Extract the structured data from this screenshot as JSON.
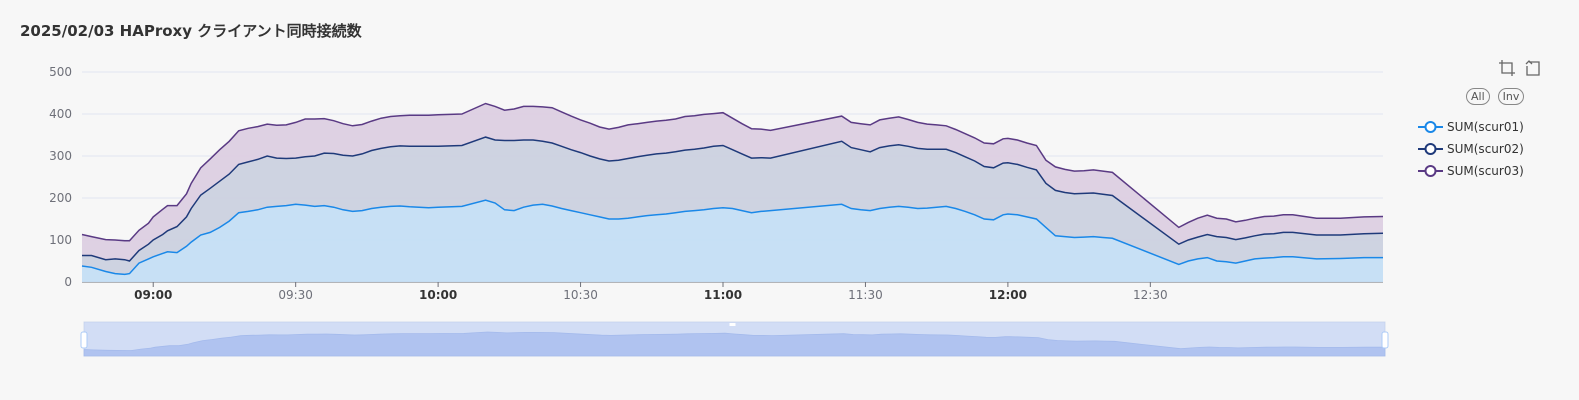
{
  "title": "2025/02/03 HAProxy クライアント同時接続数",
  "toolbox": {
    "zoom_icon": "data-zoom-icon",
    "restore_icon": "zoom-restore-icon"
  },
  "legend_buttons": {
    "all": "All",
    "inverse": "Inv"
  },
  "chart_data": {
    "type": "area",
    "stacked": true,
    "ylim": [
      0,
      500
    ],
    "y_ticks": [
      "0",
      "100",
      "200",
      "300",
      "400",
      "500"
    ],
    "x_range": [
      "08:45",
      "13:19"
    ],
    "x_ticks": [
      {
        "label": "09:00",
        "time": "09:00",
        "bold": true
      },
      {
        "label": "09:30",
        "time": "09:30",
        "bold": false
      },
      {
        "label": "10:00",
        "time": "10:00",
        "bold": true
      },
      {
        "label": "10:30",
        "time": "10:30",
        "bold": false
      },
      {
        "label": "11:00",
        "time": "11:00",
        "bold": true
      },
      {
        "label": "11:30",
        "time": "11:30",
        "bold": false
      },
      {
        "label": "12:00",
        "time": "12:00",
        "bold": true
      },
      {
        "label": "12:30",
        "time": "12:30",
        "bold": false
      }
    ],
    "grid": true,
    "legend_position": "right",
    "x": [
      "08:45",
      "08:47",
      "08:50",
      "08:52",
      "08:54",
      "08:55",
      "08:57",
      "08:59",
      "09:00",
      "09:02",
      "09:03",
      "09:05",
      "09:07",
      "09:08",
      "09:10",
      "09:12",
      "09:14",
      "09:16",
      "09:18",
      "09:20",
      "09:22",
      "09:24",
      "09:26",
      "09:28",
      "09:30",
      "09:32",
      "09:34",
      "09:36",
      "09:38",
      "09:40",
      "09:42",
      "09:44",
      "09:46",
      "09:48",
      "09:50",
      "09:52",
      "09:54",
      "09:56",
      "09:58",
      "10:00",
      "10:05",
      "10:10",
      "10:12",
      "10:14",
      "10:16",
      "10:18",
      "10:20",
      "10:22",
      "10:24",
      "10:26",
      "10:28",
      "10:30",
      "10:32",
      "10:34",
      "10:36",
      "10:38",
      "10:40",
      "10:42",
      "10:44",
      "10:46",
      "10:48",
      "10:50",
      "10:52",
      "10:54",
      "10:56",
      "10:58",
      "11:00",
      "11:02",
      "11:04",
      "11:06",
      "11:08",
      "11:10",
      "11:25",
      "11:27",
      "11:29",
      "11:31",
      "11:33",
      "11:35",
      "11:37",
      "11:39",
      "11:41",
      "11:43",
      "11:45",
      "11:47",
      "11:49",
      "11:51",
      "11:53",
      "11:55",
      "11:57",
      "11:59",
      "12:00",
      "12:02",
      "12:04",
      "12:06",
      "12:08",
      "12:10",
      "12:12",
      "12:14",
      "12:16",
      "12:18",
      "12:20",
      "12:22",
      "12:36",
      "12:38",
      "12:40",
      "12:42",
      "12:44",
      "12:46",
      "12:48",
      "12:50",
      "12:52",
      "12:54",
      "12:56",
      "12:58",
      "13:00",
      "13:05",
      "13:10",
      "13:15",
      "13:19"
    ],
    "series": [
      {
        "name": "SUM(scur01)",
        "color": "#1a88e8",
        "fill": "#c4def4",
        "values": [
          38,
          35,
          25,
          20,
          18,
          20,
          45,
          55,
          60,
          68,
          72,
          70,
          85,
          95,
          112,
          118,
          130,
          145,
          165,
          168,
          172,
          178,
          180,
          182,
          185,
          183,
          180,
          182,
          178,
          172,
          168,
          170,
          175,
          178,
          180,
          181,
          179,
          178,
          177,
          178,
          180,
          195,
          188,
          172,
          170,
          178,
          183,
          185,
          181,
          175,
          170,
          165,
          160,
          155,
          150,
          150,
          152,
          155,
          158,
          160,
          162,
          165,
          168,
          170,
          172,
          175,
          177,
          175,
          170,
          165,
          168,
          170,
          185,
          175,
          172,
          170,
          175,
          178,
          180,
          178,
          175,
          176,
          178,
          180,
          175,
          168,
          160,
          150,
          148,
          160,
          162,
          160,
          155,
          150,
          130,
          110,
          108,
          106,
          107,
          108,
          106,
          104,
          42,
          50,
          55,
          58,
          50,
          48,
          45,
          50,
          55,
          57,
          58,
          60,
          60,
          55,
          56,
          58,
          58
        ]
      },
      {
        "name": "SUM(scur02)",
        "color": "#1f3a7a",
        "fill": "#cbd1df",
        "values": [
          25,
          28,
          28,
          35,
          35,
          30,
          30,
          35,
          40,
          45,
          50,
          62,
          70,
          80,
          95,
          105,
          110,
          112,
          115,
          118,
          120,
          122,
          115,
          112,
          110,
          115,
          120,
          125,
          128,
          130,
          132,
          135,
          138,
          140,
          142,
          143,
          144,
          145,
          146,
          145,
          145,
          150,
          150,
          165,
          167,
          160,
          155,
          150,
          150,
          148,
          145,
          143,
          140,
          138,
          138,
          140,
          142,
          143,
          144,
          145,
          145,
          145,
          146,
          146,
          147,
          148,
          148,
          140,
          135,
          130,
          128,
          125,
          150,
          145,
          143,
          140,
          145,
          146,
          147,
          145,
          143,
          140,
          138,
          136,
          133,
          130,
          128,
          125,
          124,
          123,
          122,
          120,
          118,
          117,
          105,
          108,
          105,
          104,
          104,
          104,
          103,
          102,
          48,
          50,
          52,
          55,
          58,
          58,
          56,
          55,
          55,
          57,
          57,
          58,
          58,
          57,
          56,
          57,
          58
        ]
      },
      {
        "name": "SUM(scur03)",
        "color": "#5a3a84",
        "fill": "#dccfe2",
        "values": [
          50,
          45,
          48,
          45,
          45,
          48,
          48,
          50,
          55,
          60,
          60,
          50,
          55,
          60,
          65,
          70,
          75,
          78,
          80,
          80,
          78,
          76,
          78,
          80,
          85,
          90,
          88,
          82,
          78,
          75,
          72,
          70,
          70,
          72,
          72,
          72,
          74,
          74,
          74,
          75,
          75,
          80,
          80,
          72,
          75,
          80,
          80,
          82,
          84,
          82,
          80,
          78,
          78,
          76,
          76,
          78,
          80,
          79,
          78,
          78,
          78,
          78,
          80,
          80,
          80,
          78,
          78,
          75,
          72,
          70,
          68,
          66,
          60,
          60,
          62,
          64,
          66,
          66,
          66,
          64,
          62,
          60,
          58,
          56,
          55,
          55,
          55,
          56,
          57,
          58,
          58,
          58,
          58,
          58,
          55,
          56,
          55,
          54,
          54,
          55,
          55,
          55,
          40,
          42,
          45,
          46,
          44,
          44,
          42,
          42,
          42,
          42,
          42,
          42,
          42,
          40,
          40,
          40,
          40
        ]
      }
    ]
  }
}
